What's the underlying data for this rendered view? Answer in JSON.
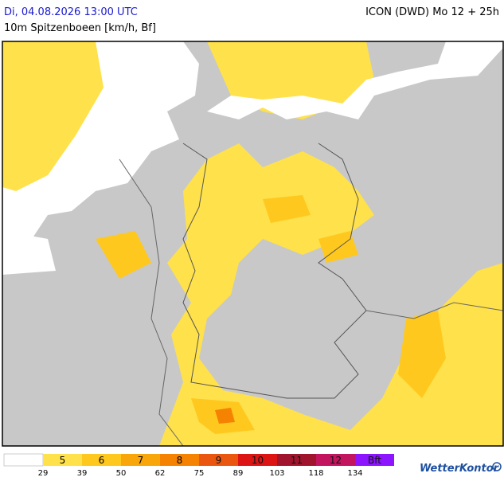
{
  "header": {
    "timestamp": "Di, 04.08.2026 13:00 UTC",
    "parameter": "10m Spitzenboeen [km/h, Bf]",
    "model": "ICON (DWD) Mo 12 + 25h"
  },
  "legend": {
    "items": [
      {
        "label": "5",
        "color": "#ffe14b"
      },
      {
        "label": "6",
        "color": "#ffc81e"
      },
      {
        "label": "7",
        "color": "#f9a60a"
      },
      {
        "label": "8",
        "color": "#f58200"
      },
      {
        "label": "9",
        "color": "#ea5510"
      },
      {
        "label": "10",
        "color": "#dc1414"
      },
      {
        "label": "11",
        "color": "#a0142d"
      },
      {
        "label": "12",
        "color": "#c3145f"
      },
      {
        "label": "Bft",
        "color": "#8c14ff"
      }
    ],
    "thresholds": [
      "29",
      "39",
      "50",
      "62",
      "75",
      "89",
      "103",
      "118",
      "134"
    ]
  },
  "brand": "WetterKontor"
}
